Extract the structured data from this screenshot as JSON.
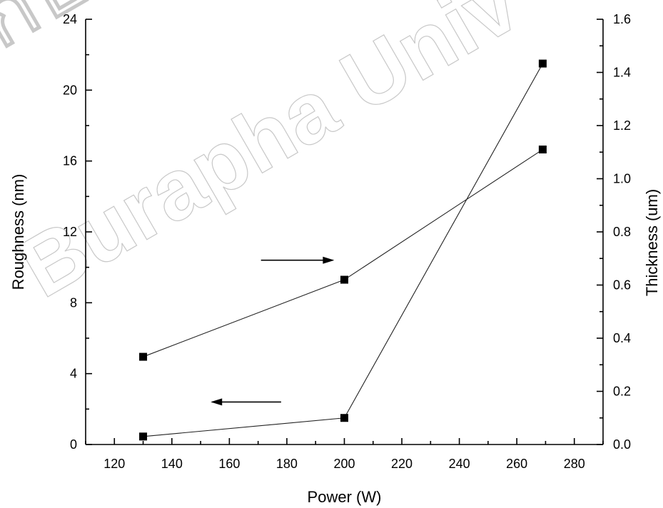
{
  "watermark": {
    "line1": "ก็บ ใจ",
    "line2": "Burapha Univ"
  },
  "chart_data": {
    "type": "line",
    "xlabel": "Power (W)",
    "ylabel_left": "Roughness (nm)",
    "ylabel_right": "Thickness (um)",
    "xlim": [
      110,
      290
    ],
    "ylim_left": [
      0,
      24
    ],
    "ylim_right": [
      0,
      1.6
    ],
    "x_ticks": [
      120,
      140,
      160,
      180,
      200,
      220,
      240,
      260,
      280
    ],
    "y_left_ticks": [
      0,
      4,
      8,
      12,
      16,
      20,
      24
    ],
    "y_right_ticks": [
      "0.0",
      "0.2",
      "0.4",
      "0.6",
      "0.8",
      "1.0",
      "1.2",
      "1.4",
      "1.6"
    ],
    "series": [
      {
        "axis": "left",
        "x": [
          130,
          200,
          269
        ],
        "y": [
          0.45,
          1.5,
          21.5
        ]
      },
      {
        "axis": "right",
        "x": [
          130,
          200,
          269
        ],
        "y": [
          0.33,
          0.62,
          1.11
        ]
      }
    ],
    "annotations": [
      {
        "type": "arrow",
        "direction": "left",
        "points_to": "left-axis",
        "x_from": 178,
        "x_to": 154,
        "y": 2.4,
        "y_axis": "left"
      },
      {
        "type": "arrow",
        "direction": "right",
        "points_to": "right-axis",
        "x_from": 171,
        "x_to": 196,
        "y": 10.4,
        "y_axis": "left"
      }
    ],
    "grid": false,
    "marker": "square"
  }
}
